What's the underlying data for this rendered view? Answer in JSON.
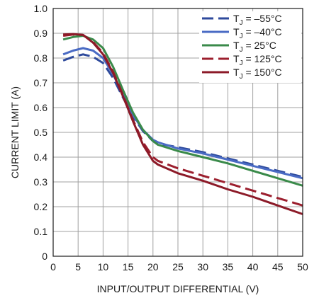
{
  "chart_data": {
    "type": "line",
    "xlabel": "INPUT/OUTPUT DIFFERENTIAL (V)",
    "ylabel": "CURRENT LIMIT (A)",
    "xlim": [
      0,
      50
    ],
    "ylim": [
      0,
      1.0
    ],
    "x_ticks": [
      "0",
      "5",
      "10",
      "15",
      "20",
      "25",
      "30",
      "35",
      "40",
      "45",
      "50"
    ],
    "y_ticks": [
      "0",
      "0.1",
      "0.2",
      "0.3",
      "0.4",
      "0.5",
      "0.6",
      "0.7",
      "0.8",
      "0.9",
      "1.0"
    ],
    "grid": true,
    "legend_position": "top-right",
    "series": [
      {
        "name": "TJ = –55°C",
        "legend_main": "T",
        "legend_sub": "J",
        "legend_rest": " = –55°C",
        "color": "#2e4a9c",
        "dash": true,
        "points": [
          [
            2,
            0.79
          ],
          [
            4,
            0.805
          ],
          [
            6,
            0.815
          ],
          [
            8,
            0.805
          ],
          [
            10,
            0.78
          ],
          [
            12,
            0.72
          ],
          [
            14,
            0.64
          ],
          [
            16,
            0.565
          ],
          [
            18,
            0.505
          ],
          [
            20,
            0.465
          ],
          [
            21,
            0.455
          ],
          [
            25,
            0.44
          ],
          [
            30,
            0.42
          ],
          [
            35,
            0.395
          ],
          [
            40,
            0.37
          ],
          [
            45,
            0.345
          ],
          [
            50,
            0.32
          ]
        ]
      },
      {
        "name": "TJ = –40°C",
        "legend_main": "T",
        "legend_sub": "J",
        "legend_rest": " = –40°C",
        "color": "#4a6bc4",
        "dash": false,
        "points": [
          [
            2,
            0.815
          ],
          [
            4,
            0.83
          ],
          [
            6,
            0.84
          ],
          [
            8,
            0.83
          ],
          [
            10,
            0.8
          ],
          [
            12,
            0.735
          ],
          [
            14,
            0.65
          ],
          [
            16,
            0.57
          ],
          [
            18,
            0.51
          ],
          [
            20,
            0.47
          ],
          [
            21,
            0.46
          ],
          [
            25,
            0.435
          ],
          [
            30,
            0.415
          ],
          [
            35,
            0.39
          ],
          [
            40,
            0.365
          ],
          [
            45,
            0.34
          ],
          [
            50,
            0.315
          ]
        ]
      },
      {
        "name": "TJ = 25°C",
        "legend_main": "T",
        "legend_sub": "J",
        "legend_rest": " = 25°C",
        "color": "#3a8a4a",
        "dash": false,
        "points": [
          [
            2,
            0.875
          ],
          [
            4,
            0.885
          ],
          [
            6,
            0.89
          ],
          [
            8,
            0.875
          ],
          [
            10,
            0.84
          ],
          [
            12,
            0.765
          ],
          [
            14,
            0.67
          ],
          [
            16,
            0.58
          ],
          [
            18,
            0.51
          ],
          [
            20,
            0.465
          ],
          [
            21,
            0.45
          ],
          [
            25,
            0.425
          ],
          [
            30,
            0.4
          ],
          [
            35,
            0.375
          ],
          [
            40,
            0.345
          ],
          [
            45,
            0.315
          ],
          [
            50,
            0.285
          ]
        ]
      },
      {
        "name": "TJ = 125°C",
        "legend_main": "T",
        "legend_sub": "J",
        "legend_rest": " = 125°C",
        "color": "#9c1f2e",
        "dash": true,
        "points": [
          [
            2,
            0.89
          ],
          [
            4,
            0.895
          ],
          [
            6,
            0.893
          ],
          [
            8,
            0.865
          ],
          [
            10,
            0.82
          ],
          [
            12,
            0.745
          ],
          [
            14,
            0.65
          ],
          [
            16,
            0.55
          ],
          [
            18,
            0.46
          ],
          [
            20,
            0.4
          ],
          [
            21,
            0.385
          ],
          [
            25,
            0.355
          ],
          [
            30,
            0.325
          ],
          [
            35,
            0.295
          ],
          [
            40,
            0.265
          ],
          [
            45,
            0.235
          ],
          [
            50,
            0.205
          ]
        ]
      },
      {
        "name": "TJ = 150°C",
        "legend_main": "T",
        "legend_sub": "J",
        "legend_rest": " = 150°C",
        "color": "#8c1a28",
        "dash": false,
        "points": [
          [
            2,
            0.895
          ],
          [
            4,
            0.897
          ],
          [
            6,
            0.893
          ],
          [
            8,
            0.862
          ],
          [
            10,
            0.815
          ],
          [
            12,
            0.74
          ],
          [
            14,
            0.645
          ],
          [
            16,
            0.545
          ],
          [
            18,
            0.45
          ],
          [
            20,
            0.385
          ],
          [
            21,
            0.37
          ],
          [
            25,
            0.335
          ],
          [
            30,
            0.305
          ],
          [
            35,
            0.27
          ],
          [
            40,
            0.24
          ],
          [
            45,
            0.205
          ],
          [
            50,
            0.17
          ]
        ]
      }
    ]
  }
}
